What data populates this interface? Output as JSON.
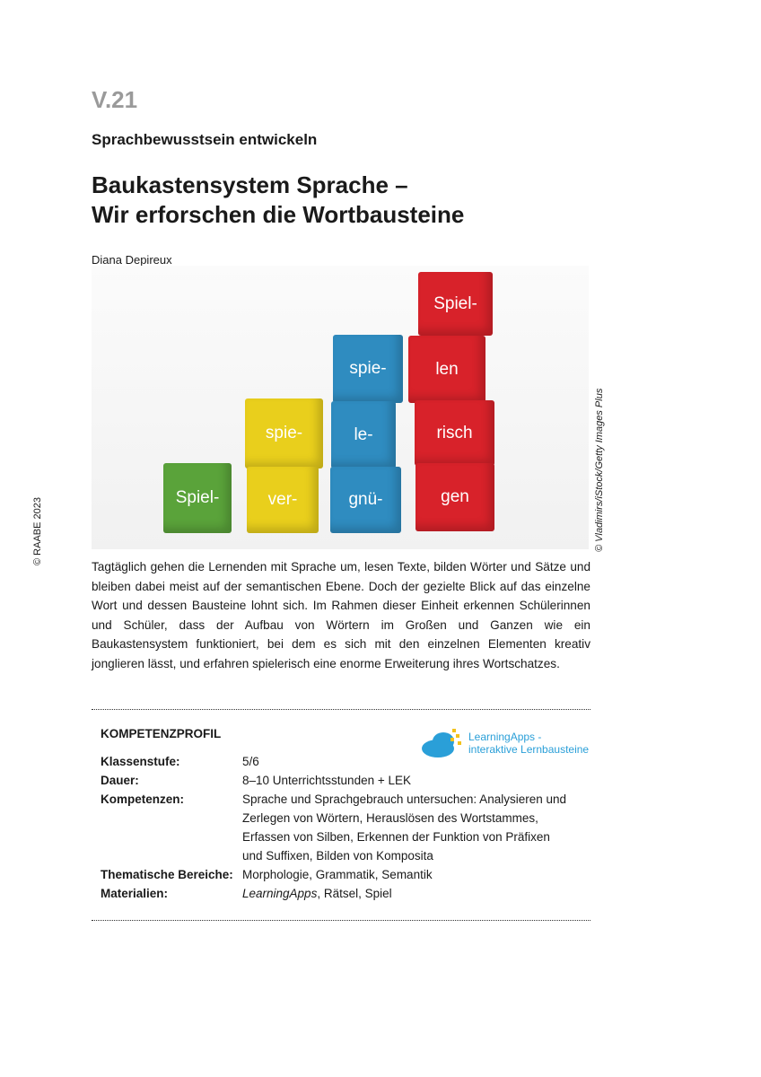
{
  "header": {
    "code": "V.21",
    "kicker": "Sprachbewusstsein entwickeln",
    "title_line1": "Baukastensystem Sprache –",
    "title_line2": "Wir erforschen die Wortbausteine",
    "author": "Diana Depireux"
  },
  "photo": {
    "credit": "© Vladimirs/iStock/Getty Images Plus",
    "blocks": [
      "Spiel-",
      "spie-",
      "ver-",
      "spie-",
      "le-",
      "gnü-",
      "Spiel-",
      "len",
      "risch",
      "gen"
    ],
    "colors": {
      "green": "#5aa33a",
      "yellow": "#e9cf1c",
      "blue": "#2f8cc0",
      "red": "#d8222a"
    }
  },
  "side_copyright": "© RAABE 2023",
  "intro": "Tagtäglich gehen die Lernenden mit Sprache um, lesen Texte, bilden Wörter und Sätze und bleiben dabei meist auf der semantischen Ebene. Doch der gezielte Blick auf das einzelne Wort und dessen Bausteine lohnt sich. Im Rahmen dieser Einheit erkennen Schülerinnen und Schüler, dass der Aufbau von Wörtern im Großen und Ganzen wie ein Baukastensystem funktioniert, bei dem es sich mit den einzelnen Elementen kreativ jonglieren lässt, und erfahren spielerisch eine enorme Erweiterung ihres Wortschatzes.",
  "profile": {
    "heading": "KOMPETENZPROFIL",
    "logo_line1": "LearningApps -",
    "logo_line2": "interaktive Lernbausteine",
    "rows": [
      {
        "label": "Klassenstufe:",
        "value": "5/6"
      },
      {
        "label": "Dauer:",
        "value": "8–10 Unterrichtsstunden + LEK"
      },
      {
        "label": "Kompetenzen:",
        "value": "Sprache und Sprachgebrauch untersuchen: Analysieren und Zerlegen von Wörtern, Herauslösen des Wortstammes, Erfassen von Silben, Erkennen der Funktion von Präfixen und Suffixen, Bilden von Komposita"
      },
      {
        "label": "Thematische Bereiche:",
        "value": "Morphologie, Grammatik, Semantik"
      },
      {
        "label": "Materialien:",
        "value_italic": "LearningApps",
        "value": ", Rätsel, Spiel"
      }
    ]
  }
}
